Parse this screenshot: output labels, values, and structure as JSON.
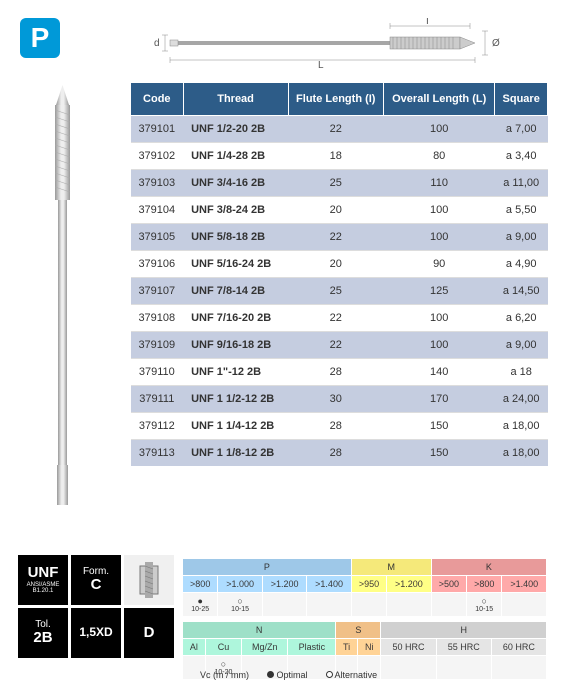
{
  "badge": "P",
  "diagram": {
    "labels": {
      "d": "d",
      "L": "L",
      "I": "I",
      "diameter": "Ø"
    }
  },
  "table": {
    "headers": [
      "Code",
      "Thread",
      "Flute Length (I)",
      "Overall Length (L)",
      "Square"
    ],
    "rows": [
      [
        "379101",
        "UNF 1/2-20 2B",
        "22",
        "100",
        "a 7,00"
      ],
      [
        "379102",
        "UNF 1/4-28 2B",
        "18",
        "80",
        "a 3,40"
      ],
      [
        "379103",
        "UNF 3/4-16 2B",
        "25",
        "110",
        "a 11,00"
      ],
      [
        "379104",
        "UNF 3/8-24 2B",
        "20",
        "100",
        "a 5,50"
      ],
      [
        "379105",
        "UNF 5/8-18 2B",
        "22",
        "100",
        "a 9,00"
      ],
      [
        "379106",
        "UNF 5/16-24 2B",
        "20",
        "90",
        "a 4,90"
      ],
      [
        "379107",
        "UNF 7/8-14 2B",
        "25",
        "125",
        "a 14,50"
      ],
      [
        "379108",
        "UNF 7/16-20 2B",
        "22",
        "100",
        "a 6,20"
      ],
      [
        "379109",
        "UNF 9/16-18 2B",
        "22",
        "100",
        "a 9,00"
      ],
      [
        "379110",
        "UNF 1\"-12 2B",
        "28",
        "140",
        "a 18"
      ],
      [
        "379111",
        "UNF 1 1/2-12 2B",
        "30",
        "170",
        "a 24,00"
      ],
      [
        "379112",
        "UNF 1 1/4-12 2B",
        "28",
        "150",
        "a 18,00"
      ],
      [
        "379113",
        "UNF 1 1/8-12 2B",
        "28",
        "150",
        "a 18,00"
      ]
    ]
  },
  "specs": {
    "unf": {
      "big": "UNF",
      "small": "ANSI/ASME B1.20.1"
    },
    "form": {
      "label": "Form.",
      "big": "C"
    },
    "tol": {
      "label": "Tol.",
      "big": "2B"
    },
    "xd": "1,5XD",
    "d": "D"
  },
  "materials": {
    "row1": {
      "P": {
        "color": "#9ec8e8",
        "cols": [
          ">800",
          ">1.000",
          ">1.200",
          ">1.400"
        ],
        "marks": [
          "●\n10-25",
          "○\n10-15",
          "",
          ""
        ]
      },
      "M": {
        "color": "#f5e97a",
        "cols": [
          ">950",
          ">1.200"
        ],
        "marks": [
          "",
          ""
        ]
      },
      "K": {
        "color": "#e89a9a",
        "cols": [
          ">500",
          ">800",
          ">1.400"
        ],
        "marks": [
          "",
          "○\n10-15",
          ""
        ]
      }
    },
    "row2": {
      "N": {
        "color": "#9ee0c8",
        "cols": [
          "Al",
          "Cu",
          "Mg/Zn",
          "Plastic"
        ],
        "marks": [
          "",
          "○\n10-20",
          "",
          ""
        ]
      },
      "S": {
        "color": "#f0c088",
        "cols": [
          "Ti",
          "Ni"
        ],
        "marks": [
          "",
          ""
        ]
      },
      "H": {
        "color": "#d0d0d0",
        "cols": [
          "50 HRC",
          "55 HRC",
          "60 HRC"
        ],
        "marks": [
          "",
          "",
          ""
        ]
      }
    }
  },
  "legend": {
    "vc": "Vc (m / mm)",
    "optimal": "Optimal",
    "alternative": "Alternative"
  }
}
